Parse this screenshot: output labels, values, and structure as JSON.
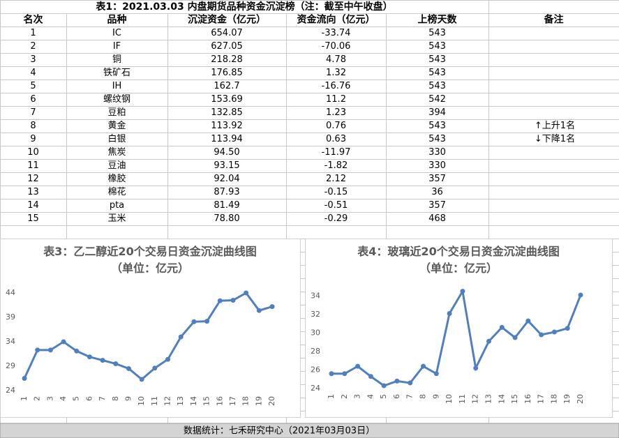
{
  "header": {
    "title": "表1：2021.03.03 内盘期货品种资金沉淀榜（注：截至中午收盘）"
  },
  "table": {
    "columns": [
      "名次",
      "品种",
      "沉淀资金（亿元）",
      "资金流向（亿元）",
      "上榜天数",
      "备注"
    ],
    "rows": [
      [
        "1",
        "IC",
        "654.07",
        "-33.74",
        "543"
      ],
      [
        "2",
        "IF",
        "627.05",
        "-70.06",
        "543"
      ],
      [
        "3",
        "铜",
        "218.28",
        "4.78",
        "543"
      ],
      [
        "4",
        "铁矿石",
        "176.85",
        "1.32",
        "543"
      ],
      [
        "5",
        "IH",
        "162.7",
        "-16.76",
        "543"
      ],
      [
        "6",
        "螺纹钢",
        "153.69",
        "11.2",
        "542"
      ],
      [
        "7",
        "豆粕",
        "132.85",
        "1.23",
        "394"
      ],
      [
        "8",
        "黄金",
        "113.92",
        "0.76",
        "543",
        "↑上升1名"
      ],
      [
        "9",
        "白银",
        "113.94",
        "0.63",
        "543",
        "↓下降1名"
      ],
      [
        "10",
        "焦炭",
        "94.50",
        "-11.97",
        "330"
      ],
      [
        "11",
        "豆油",
        "93.15",
        "-1.82",
        "330"
      ],
      [
        "12",
        "橡胶",
        "92.04",
        "2.12",
        "357"
      ],
      [
        "13",
        "棉花",
        "87.93",
        "-0.15",
        "36"
      ],
      [
        "14",
        "pta",
        "81.49",
        "-0.51",
        "357"
      ],
      [
        "15",
        "玉米",
        "78.80",
        "-0.29",
        "468"
      ]
    ]
  },
  "chart_data": [
    {
      "type": "line",
      "title": "表3：乙二醇近20个交易日资金沉淀曲线图（单位：亿元）",
      "color": "#4f7fbf",
      "categories": [
        "1",
        "2",
        "3",
        "4",
        "5",
        "6",
        "7",
        "8",
        "9",
        "10",
        "11",
        "12",
        "13",
        "14",
        "15",
        "16",
        "17",
        "18",
        "19",
        "20"
      ],
      "values": [
        26.5,
        32.3,
        32.3,
        34,
        32.1,
        30.9,
        30.2,
        29.5,
        28.5,
        26.3,
        28.6,
        30.4,
        35,
        38.1,
        38.2,
        42.4,
        42.5,
        44,
        40.4,
        41.2
      ],
      "ylim": [
        24,
        45
      ],
      "yticks": [
        24,
        29,
        34,
        39,
        44
      ]
    },
    {
      "type": "line",
      "title": "表4：玻璃近20个交易日资金沉淀曲线图（单位：亿元）",
      "color": "#4f7fbf",
      "categories": [
        "1",
        "2",
        "3",
        "4",
        "5",
        "6",
        "7",
        "8",
        "9",
        "10",
        "11",
        "12",
        "13",
        "14",
        "15",
        "16",
        "17",
        "18",
        "19",
        "20"
      ],
      "values": [
        25.6,
        25.6,
        26.4,
        25.3,
        24.3,
        24.8,
        24.6,
        26.4,
        25.6,
        32.1,
        34.5,
        26.2,
        29.1,
        30.6,
        29.5,
        31.3,
        29.8,
        30.1,
        30.5,
        34.1
      ],
      "ylim": [
        24,
        35
      ],
      "yticks": [
        24,
        26,
        28,
        30,
        32,
        34
      ]
    }
  ],
  "footer": {
    "text": "数据统计：七禾研究中心（2021年03月03日）"
  }
}
